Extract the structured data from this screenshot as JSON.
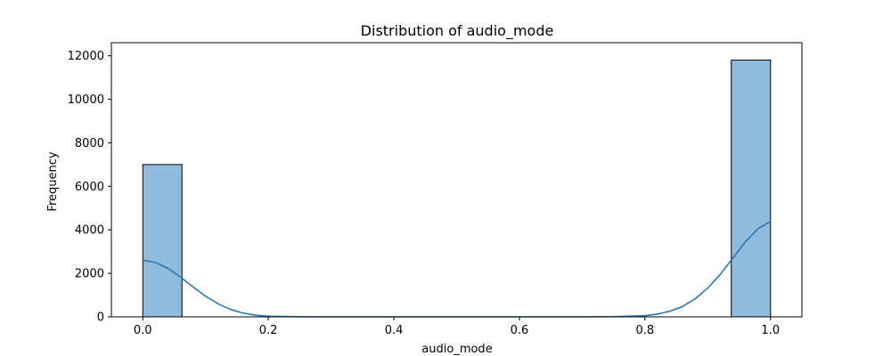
{
  "chart_data": {
    "type": "bar",
    "title": "Distribution of audio_mode",
    "xlabel": "audio_mode",
    "ylabel": "Frequency",
    "xlim": [
      -0.05,
      1.05
    ],
    "ylim": [
      0,
      12600
    ],
    "xticks": [
      0.0,
      0.2,
      0.4,
      0.6,
      0.8,
      1.0
    ],
    "xtick_labels": [
      "0.0",
      "0.2",
      "0.4",
      "0.6",
      "0.8",
      "1.0"
    ],
    "yticks": [
      0,
      2000,
      4000,
      6000,
      8000,
      10000,
      12000
    ],
    "ytick_labels": [
      "0",
      "2000",
      "4000",
      "6000",
      "8000",
      "10000",
      "12000"
    ],
    "bins": [
      {
        "x0": 0.0,
        "x1": 0.0625,
        "count": 7000
      },
      {
        "x0": 0.9375,
        "x1": 1.0,
        "count": 11800
      }
    ],
    "kde": {
      "x": [
        0.0,
        0.02,
        0.04,
        0.06,
        0.08,
        0.1,
        0.12,
        0.14,
        0.16,
        0.18,
        0.2,
        0.25,
        0.3,
        0.4,
        0.5,
        0.6,
        0.7,
        0.75,
        0.8,
        0.82,
        0.84,
        0.86,
        0.88,
        0.9,
        0.92,
        0.94,
        0.96,
        0.98,
        1.0
      ],
      "y": [
        2600,
        2500,
        2230,
        1830,
        1380,
        950,
        600,
        340,
        170,
        75,
        30,
        5,
        0,
        0,
        0,
        0,
        0,
        10,
        55,
        125,
        260,
        480,
        830,
        1320,
        1950,
        2700,
        3450,
        4050,
        4380
      ]
    },
    "grid": false,
    "legend": "none",
    "colors": {
      "bar_fill": "#8fbcdc",
      "bar_edge": "#000000",
      "kde_line": "#2a78b8"
    }
  }
}
